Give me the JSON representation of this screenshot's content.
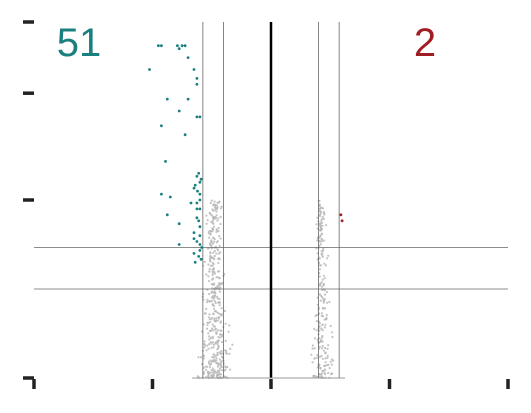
{
  "chart_data": {
    "type": "scatter",
    "title": "",
    "xlabel": "",
    "ylabel": "",
    "xlim": [
      -4,
      4
    ],
    "ylim": [
      0,
      6
    ],
    "x_ticks": [
      -4,
      -2,
      0,
      2,
      4
    ],
    "y_ticks": [
      0,
      3,
      4.8,
      6
    ],
    "x_tick_labels": [],
    "y_tick_labels": [],
    "grid": false,
    "vlines": {
      "center": 0,
      "fc_thresholds": [
        -1.15,
        -0.8,
        0.8,
        1.15
      ]
    },
    "hlines": [
      1.5,
      2.2
    ],
    "counts": {
      "down": "51",
      "up": "2"
    },
    "colors": {
      "down": "#1a7f7f",
      "up": "#a01e23",
      "ns": "#b8b8b8",
      "axis": "#222222",
      "guide": "#666666"
    },
    "series": [
      {
        "category": "down",
        "points": [
          [
            -1.9,
            5.6
          ],
          [
            -1.85,
            5.6
          ],
          [
            -1.58,
            5.6
          ],
          [
            -1.5,
            5.6
          ],
          [
            -1.45,
            5.6
          ],
          [
            -1.55,
            5.55
          ],
          [
            -1.4,
            5.4
          ],
          [
            -2.05,
            5.2
          ],
          [
            -1.3,
            5.2
          ],
          [
            -1.25,
            5.05
          ],
          [
            -1.25,
            4.95
          ],
          [
            -1.75,
            4.7
          ],
          [
            -1.4,
            4.7
          ],
          [
            -1.55,
            4.5
          ],
          [
            -1.25,
            4.4
          ],
          [
            -1.2,
            4.4
          ],
          [
            -1.85,
            4.25
          ],
          [
            -1.45,
            4.1
          ],
          [
            -1.78,
            3.65
          ],
          [
            -1.25,
            3.4
          ],
          [
            -1.2,
            3.3
          ],
          [
            -1.85,
            3.1
          ],
          [
            -1.7,
            3.05
          ],
          [
            -1.3,
            3.2
          ],
          [
            -1.2,
            3.1
          ],
          [
            -1.35,
            2.95
          ],
          [
            -1.25,
            2.95
          ],
          [
            -1.2,
            2.85
          ],
          [
            -1.25,
            2.7
          ],
          [
            -1.75,
            2.75
          ],
          [
            -1.55,
            2.6
          ],
          [
            -1.2,
            2.55
          ],
          [
            -1.3,
            2.45
          ],
          [
            -1.2,
            2.4
          ],
          [
            -1.25,
            2.3
          ],
          [
            -1.55,
            2.25
          ],
          [
            -1.2,
            2.25
          ],
          [
            -1.3,
            2.1
          ],
          [
            -1.22,
            2.05
          ],
          [
            -1.18,
            2.0
          ],
          [
            -1.28,
            1.95
          ],
          [
            -1.2,
            3.0
          ],
          [
            -1.28,
            3.25
          ],
          [
            -1.22,
            3.45
          ],
          [
            -1.18,
            3.35
          ],
          [
            -1.25,
            2.85
          ],
          [
            -1.22,
            2.65
          ],
          [
            -1.2,
            2.15
          ],
          [
            -1.3,
            2.35
          ],
          [
            -1.17,
            2.2
          ],
          [
            -1.24,
            3.15
          ]
        ]
      },
      {
        "category": "up",
        "points": [
          [
            1.18,
            2.75
          ],
          [
            1.2,
            2.65
          ]
        ]
      }
    ]
  }
}
